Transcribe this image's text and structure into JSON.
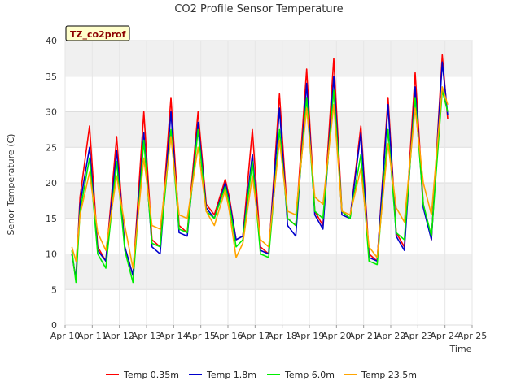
{
  "chart_data": {
    "type": "line",
    "title": "CO2 Profile Sensor Temperature",
    "xlabel": "Time",
    "ylabel": "Senor Temperature (C)",
    "badge": "TZ_co2prof",
    "ylim": [
      0,
      40
    ],
    "xlim": [
      10,
      25
    ],
    "yticks": [
      0,
      5,
      10,
      15,
      20,
      25,
      30,
      35,
      40
    ],
    "xticks": [
      {
        "v": 10,
        "label": "Apr 10"
      },
      {
        "v": 11,
        "label": "Apr 11"
      },
      {
        "v": 12,
        "label": "Apr 12"
      },
      {
        "v": 13,
        "label": "Apr 13"
      },
      {
        "v": 14,
        "label": "Apr 14"
      },
      {
        "v": 15,
        "label": "Apr 15"
      },
      {
        "v": 16,
        "label": "Apr 16"
      },
      {
        "v": 17,
        "label": "Apr 17"
      },
      {
        "v": 18,
        "label": "Apr 18"
      },
      {
        "v": 19,
        "label": "Apr 19"
      },
      {
        "v": 20,
        "label": "Apr 20"
      },
      {
        "v": 21,
        "label": "Apr 21"
      },
      {
        "v": 22,
        "label": "Apr 22"
      },
      {
        "v": 23,
        "label": "Apr 23"
      },
      {
        "v": 24,
        "label": "Apr 24"
      },
      {
        "v": 25,
        "label": "Apr 25"
      }
    ],
    "grid": true,
    "legend": "bottom",
    "series": [
      {
        "name": "Temp 0.35m",
        "color": "#ff0000",
        "x": [
          10.25,
          10.4,
          10.55,
          10.9,
          11.2,
          11.5,
          11.9,
          12.2,
          12.5,
          12.9,
          13.2,
          13.5,
          13.9,
          14.2,
          14.5,
          14.9,
          15.2,
          15.5,
          15.9,
          16.05,
          16.3,
          16.55,
          16.9,
          17.2,
          17.5,
          17.9,
          18.2,
          18.5,
          18.9,
          19.2,
          19.5,
          19.9,
          20.2,
          20.5,
          20.9,
          21.2,
          21.5,
          21.9,
          22.2,
          22.5,
          22.9,
          23.2,
          23.5,
          23.9,
          24.1
        ],
        "y": [
          10,
          6.5,
          18,
          28,
          11,
          9,
          26.5,
          11,
          7,
          30,
          12,
          11,
          32,
          14,
          13,
          30,
          17,
          15.5,
          20.5,
          18,
          12,
          12.5,
          27.5,
          11,
          10,
          32.5,
          15,
          14,
          36,
          16,
          14,
          37.5,
          16,
          15,
          28,
          10,
          9,
          32,
          13,
          11,
          35.5,
          17,
          12,
          38,
          29
        ]
      },
      {
        "name": "Temp 1.8m",
        "color": "#0000cc",
        "x": [
          10.25,
          10.4,
          10.55,
          10.9,
          11.2,
          11.5,
          11.9,
          12.2,
          12.5,
          12.9,
          13.2,
          13.5,
          13.9,
          14.2,
          14.5,
          14.9,
          15.2,
          15.5,
          15.9,
          16.05,
          16.3,
          16.55,
          16.9,
          17.2,
          17.5,
          17.9,
          18.2,
          18.5,
          18.9,
          19.2,
          19.5,
          19.9,
          20.2,
          20.5,
          20.9,
          21.2,
          21.5,
          21.9,
          22.2,
          22.5,
          22.9,
          23.2,
          23.5,
          23.9,
          24.1
        ],
        "y": [
          10,
          6.5,
          17,
          25,
          10.5,
          9,
          24.5,
          11,
          7,
          27,
          11,
          10,
          30,
          13,
          12.5,
          28.5,
          16.5,
          15,
          20,
          17.5,
          12,
          12.5,
          24,
          10.5,
          10,
          30.5,
          14,
          12.5,
          34,
          15.5,
          13.5,
          35,
          15.5,
          15,
          27,
          9.5,
          9,
          31,
          12.5,
          10.5,
          33.5,
          16.5,
          12,
          37,
          29.5
        ]
      },
      {
        "name": "Temp 6.0m",
        "color": "#00ee00",
        "x": [
          10.25,
          10.4,
          10.55,
          10.9,
          11.2,
          11.5,
          11.9,
          12.2,
          12.5,
          12.9,
          13.2,
          13.5,
          13.9,
          14.2,
          14.5,
          14.9,
          15.2,
          15.5,
          15.9,
          16.05,
          16.3,
          16.55,
          16.9,
          17.2,
          17.5,
          17.9,
          18.2,
          18.5,
          18.9,
          19.2,
          19.5,
          19.9,
          20.2,
          20.5,
          20.9,
          21.2,
          21.5,
          21.9,
          22.2,
          22.5,
          22.9,
          23.2,
          23.5,
          23.9,
          24.1
        ],
        "y": [
          10.5,
          6,
          16,
          23.5,
          10,
          8,
          23,
          10.5,
          6,
          26,
          11.5,
          11,
          27.5,
          13.5,
          13,
          27.5,
          16,
          15,
          19.5,
          17,
          11,
          12,
          23,
          10,
          9.5,
          27.5,
          15,
          14,
          32,
          16,
          15,
          33,
          16,
          15,
          24,
          9,
          8.5,
          27.5,
          13,
          12,
          32,
          17,
          12.5,
          33,
          30
        ]
      },
      {
        "name": "Temp 23.5m",
        "color": "#ffa500",
        "x": [
          10.25,
          10.4,
          10.55,
          10.9,
          11.2,
          11.5,
          11.9,
          12.2,
          12.5,
          12.9,
          13.2,
          13.5,
          13.9,
          14.2,
          14.5,
          14.9,
          15.2,
          15.5,
          15.9,
          16.05,
          16.3,
          16.55,
          16.9,
          17.2,
          17.5,
          17.9,
          18.2,
          18.5,
          18.9,
          19.2,
          19.5,
          19.9,
          20.2,
          20.5,
          20.9,
          21.2,
          21.5,
          21.9,
          22.2,
          22.5,
          22.9,
          23.2,
          23.5,
          23.9,
          24.1
        ],
        "y": [
          11,
          9,
          15.5,
          21.5,
          13,
          10.5,
          21,
          14,
          8,
          23.5,
          14,
          13.5,
          26.5,
          15.5,
          15,
          25,
          16,
          14,
          19,
          16,
          9.5,
          11.5,
          21,
          12,
          11,
          26,
          16,
          15.5,
          30.5,
          18,
          17,
          31,
          16,
          15.5,
          22,
          11,
          9.5,
          25.5,
          16.5,
          14.5,
          30.5,
          20,
          15.5,
          33.5,
          31
        ]
      }
    ]
  }
}
